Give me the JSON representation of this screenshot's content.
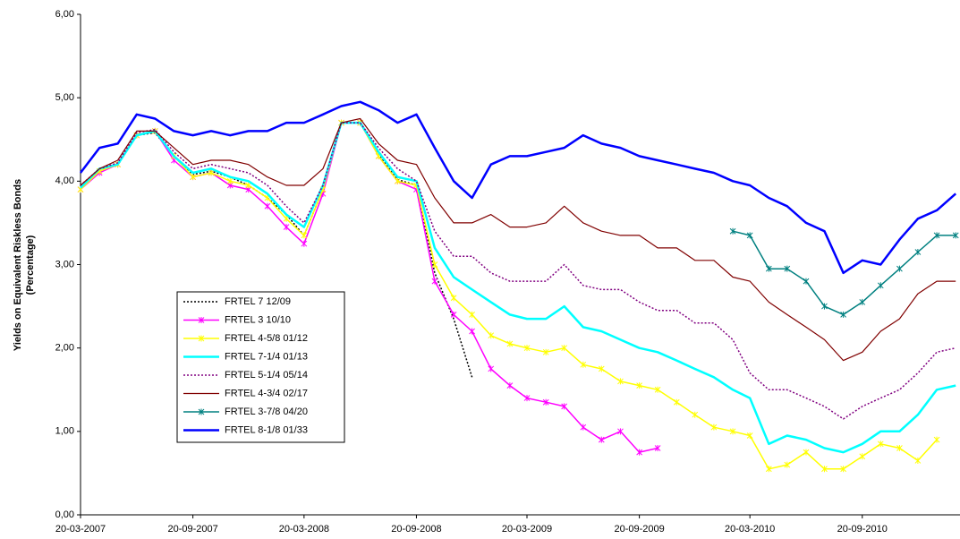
{
  "chart_data": {
    "type": "line",
    "y_label": [
      "Yields on Equivalent Riskless Bonds",
      "(Percentage)"
    ],
    "x": [
      "2007-03-20",
      "2007-04-20",
      "2007-05-20",
      "2007-06-20",
      "2007-07-20",
      "2007-08-20",
      "2007-09-20",
      "2007-10-20",
      "2007-11-20",
      "2007-12-20",
      "2008-01-20",
      "2008-02-20",
      "2008-03-20",
      "2008-04-20",
      "2008-05-20",
      "2008-06-20",
      "2008-07-20",
      "2008-08-20",
      "2008-09-20",
      "2008-10-20",
      "2008-11-20",
      "2008-12-20",
      "2009-01-20",
      "2009-02-20",
      "2009-03-20",
      "2009-04-20",
      "2009-05-20",
      "2009-06-20",
      "2009-07-20",
      "2009-08-20",
      "2009-09-20",
      "2009-10-20",
      "2009-11-20",
      "2009-12-20",
      "2010-01-20",
      "2010-02-20",
      "2010-03-20",
      "2010-04-20",
      "2010-05-20",
      "2010-06-20",
      "2010-07-20",
      "2010-08-20",
      "2010-09-20",
      "2010-10-20",
      "2010-11-20",
      "2010-12-20",
      "2011-01-20",
      "2011-02-20"
    ],
    "xlim": [
      "2007-03-20",
      "2011-02-27"
    ],
    "xticks": [
      {
        "value": "2007-03-20",
        "label": "20-03-2007"
      },
      {
        "value": "2007-09-20",
        "label": "20-09-2007"
      },
      {
        "value": "2008-03-20",
        "label": "20-03-2008"
      },
      {
        "value": "2008-09-20",
        "label": "20-09-2008"
      },
      {
        "value": "2009-03-20",
        "label": "20-03-2009"
      },
      {
        "value": "2009-09-20",
        "label": "20-09-2009"
      },
      {
        "value": "2010-03-20",
        "label": "20-03-2010"
      },
      {
        "value": "2010-09-20",
        "label": "20-09-2010"
      }
    ],
    "ylim": [
      0,
      6
    ],
    "yticks": [
      {
        "value": 0,
        "label": "0,00"
      },
      {
        "value": 1,
        "label": "1,00"
      },
      {
        "value": 2,
        "label": "2,00"
      },
      {
        "value": 3,
        "label": "3,00"
      },
      {
        "value": 4,
        "label": "4,00"
      },
      {
        "value": 5,
        "label": "5,00"
      },
      {
        "value": 6,
        "label": "6,00"
      }
    ],
    "series": [
      {
        "name": "FRTEL 7 12/09",
        "color": "#000000",
        "dash": "dotted",
        "width": 1.5,
        "marker": "none",
        "values": [
          3.92,
          4.12,
          4.2,
          4.55,
          4.58,
          4.3,
          4.08,
          4.12,
          4.05,
          3.95,
          3.8,
          3.6,
          3.35,
          3.9,
          4.7,
          4.7,
          4.32,
          4.02,
          3.95,
          2.9,
          2.35,
          1.65,
          null,
          null,
          null,
          null,
          null,
          null,
          null,
          null,
          null,
          null,
          null,
          null,
          null,
          null,
          null,
          null,
          null,
          null,
          null,
          null,
          null,
          null,
          null,
          null,
          null,
          null
        ]
      },
      {
        "name": "FRTEL 3 10/10",
        "color": "#ff00ff",
        "dash": "solid",
        "width": 1.5,
        "marker": "star",
        "values": [
          3.9,
          4.1,
          4.2,
          4.55,
          4.6,
          4.25,
          4.05,
          4.1,
          3.95,
          3.9,
          3.7,
          3.45,
          3.25,
          3.85,
          4.7,
          4.7,
          4.3,
          4.0,
          3.9,
          2.8,
          2.4,
          2.2,
          1.75,
          1.55,
          1.4,
          1.35,
          1.3,
          1.05,
          0.9,
          1.0,
          0.75,
          0.8,
          null,
          null,
          null,
          null,
          null,
          null,
          null,
          null,
          null,
          null,
          null,
          null,
          null,
          null,
          null,
          null
        ]
      },
      {
        "name": "FRTEL 4-5/8 01/12",
        "color": "#ffff00",
        "dash": "solid",
        "width": 1.5,
        "marker": "star",
        "values": [
          3.9,
          4.12,
          4.2,
          4.55,
          4.6,
          4.3,
          4.05,
          4.1,
          4.0,
          3.95,
          3.8,
          3.55,
          3.35,
          3.9,
          4.7,
          4.7,
          4.3,
          4.0,
          3.95,
          3.0,
          2.6,
          2.4,
          2.15,
          2.05,
          2.0,
          1.95,
          2.0,
          1.8,
          1.75,
          1.6,
          1.55,
          1.5,
          1.35,
          1.2,
          1.05,
          1.0,
          0.95,
          0.55,
          0.6,
          0.75,
          0.55,
          0.55,
          0.7,
          0.85,
          0.8,
          0.65,
          0.9,
          null
        ]
      },
      {
        "name": "FRTEL 7-1/4 01/13",
        "color": "#00ffff",
        "dash": "solid",
        "width": 2.5,
        "marker": "none",
        "values": [
          3.92,
          4.15,
          4.2,
          4.55,
          4.6,
          4.3,
          4.1,
          4.15,
          4.05,
          4.0,
          3.85,
          3.6,
          3.45,
          3.95,
          4.7,
          4.7,
          4.35,
          4.05,
          4.0,
          3.2,
          2.85,
          2.7,
          2.55,
          2.4,
          2.35,
          2.35,
          2.5,
          2.25,
          2.2,
          2.1,
          2.0,
          1.95,
          1.85,
          1.75,
          1.65,
          1.5,
          1.4,
          0.85,
          0.95,
          0.9,
          0.8,
          0.75,
          0.85,
          1.0,
          1.0,
          1.2,
          1.5,
          1.55
        ]
      },
      {
        "name": "FRTEL 5-1/4 05/14",
        "color": "#800080",
        "dash": "dotted",
        "width": 1.5,
        "marker": "none",
        "values": [
          3.95,
          4.15,
          4.22,
          4.58,
          4.62,
          4.35,
          4.15,
          4.2,
          4.15,
          4.1,
          3.95,
          3.7,
          3.5,
          3.95,
          4.7,
          4.7,
          4.4,
          4.15,
          4.0,
          3.4,
          3.1,
          3.1,
          2.9,
          2.8,
          2.8,
          2.8,
          3.0,
          2.75,
          2.7,
          2.7,
          2.55,
          2.45,
          2.45,
          2.3,
          2.3,
          2.1,
          1.7,
          1.5,
          1.5,
          1.4,
          1.3,
          1.15,
          1.3,
          1.4,
          1.5,
          1.7,
          1.95,
          2.0
        ]
      },
      {
        "name": "FRTEL 4-3/4 02/17",
        "color": "#800000",
        "dash": "solid",
        "width": 1.2,
        "marker": "none",
        "values": [
          3.95,
          4.15,
          4.25,
          4.6,
          4.6,
          4.4,
          4.2,
          4.25,
          4.25,
          4.2,
          4.05,
          3.95,
          3.95,
          4.15,
          4.7,
          4.75,
          4.45,
          4.25,
          4.2,
          3.8,
          3.5,
          3.5,
          3.6,
          3.45,
          3.45,
          3.5,
          3.7,
          3.5,
          3.4,
          3.35,
          3.35,
          3.2,
          3.2,
          3.05,
          3.05,
          2.85,
          2.8,
          2.55,
          2.4,
          2.25,
          2.1,
          1.85,
          1.95,
          2.2,
          2.35,
          2.65,
          2.8,
          2.8
        ]
      },
      {
        "name": "FRTEL 3-7/8 04/20",
        "color": "#008080",
        "dash": "solid",
        "width": 1.5,
        "marker": "star",
        "values": [
          null,
          null,
          null,
          null,
          null,
          null,
          null,
          null,
          null,
          null,
          null,
          null,
          null,
          null,
          null,
          null,
          null,
          null,
          null,
          null,
          null,
          null,
          null,
          null,
          null,
          null,
          null,
          null,
          null,
          null,
          null,
          null,
          null,
          null,
          null,
          3.4,
          3.35,
          2.95,
          2.95,
          2.8,
          2.5,
          2.4,
          2.55,
          2.75,
          2.95,
          3.15,
          3.35,
          3.35
        ]
      },
      {
        "name": "FRTEL 8-1/8 01/33",
        "color": "#0000ff",
        "dash": "solid",
        "width": 2.5,
        "marker": "none",
        "values": [
          4.1,
          4.4,
          4.45,
          4.8,
          4.75,
          4.6,
          4.55,
          4.6,
          4.55,
          4.6,
          4.6,
          4.7,
          4.7,
          4.8,
          4.9,
          4.95,
          4.85,
          4.7,
          4.8,
          4.4,
          4.0,
          3.8,
          4.2,
          4.3,
          4.3,
          4.35,
          4.4,
          4.55,
          4.45,
          4.4,
          4.3,
          4.25,
          4.2,
          4.15,
          4.1,
          4.0,
          3.95,
          3.8,
          3.7,
          3.5,
          3.4,
          2.9,
          3.05,
          3.0,
          3.3,
          3.55,
          3.65,
          3.85
        ]
      }
    ]
  }
}
